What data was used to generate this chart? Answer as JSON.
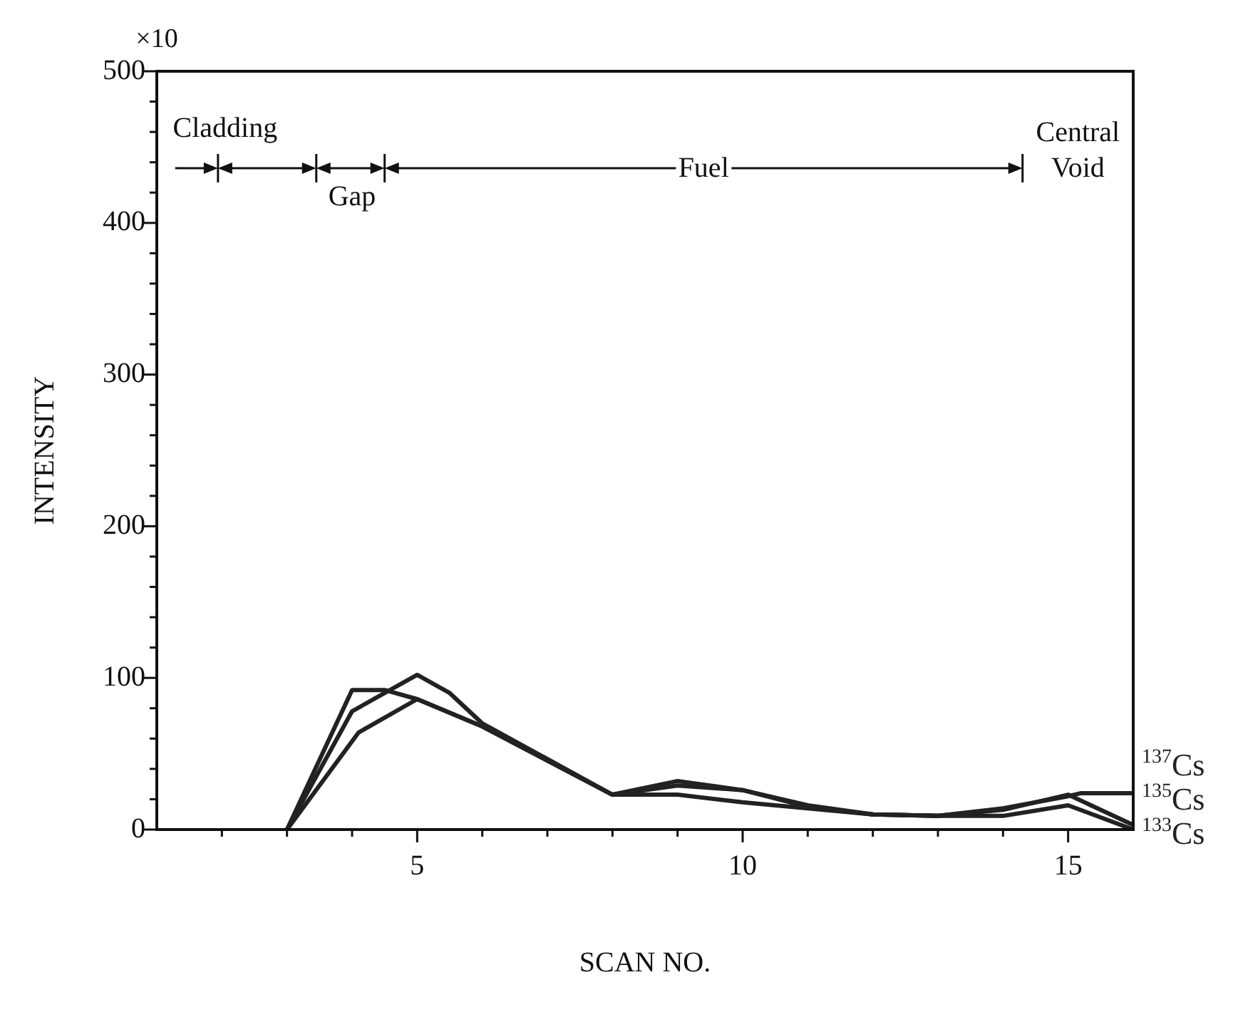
{
  "chart_data": {
    "type": "line",
    "xlabel": "SCAN NO.",
    "ylabel": "INTENSITY",
    "annotations": [
      "×10",
      "Cladding",
      "Gap",
      "Fuel",
      "Central",
      "Void"
    ],
    "xlim": [
      1,
      16
    ],
    "xticks": [
      {
        "value": 2,
        "label": null
      },
      {
        "value": 3,
        "label": null
      },
      {
        "value": 4,
        "label": null
      },
      5,
      {
        "value": 6,
        "label": null
      },
      {
        "value": 7,
        "label": null
      },
      {
        "value": 8,
        "label": null
      },
      {
        "value": 9,
        "label": null
      },
      10,
      {
        "value": 11,
        "label": null
      },
      {
        "value": 12,
        "label": null
      },
      {
        "value": 13,
        "label": null
      },
      {
        "value": 14,
        "label": null
      },
      15
    ],
    "ylim": [
      0,
      500
    ],
    "yticks": [
      0,
      {
        "value": 20,
        "label": null
      },
      {
        "value": 40,
        "label": null
      },
      {
        "value": 60,
        "label": null
      },
      {
        "value": 80,
        "label": null
      },
      100,
      {
        "value": 120,
        "label": null
      },
      {
        "value": 140,
        "label": null
      },
      {
        "value": 160,
        "label": null
      },
      {
        "value": 180,
        "label": null
      },
      200,
      {
        "value": 220,
        "label": null
      },
      {
        "value": 240,
        "label": null
      },
      {
        "value": 260,
        "label": null
      },
      {
        "value": 280,
        "label": null
      },
      300,
      {
        "value": 320,
        "label": null
      },
      {
        "value": 340,
        "label": null
      },
      {
        "value": 360,
        "label": null
      },
      {
        "value": 380,
        "label": null
      },
      400,
      {
        "value": 420,
        "label": null
      },
      {
        "value": 440,
        "label": null
      },
      {
        "value": 460,
        "label": null
      },
      {
        "value": 480,
        "label": null
      },
      500
    ],
    "grid": false,
    "legend": false,
    "marker": "none",
    "line_style": "solid",
    "series": [
      {
        "name": "$^{137}$Cs",
        "color": "#222222",
        "x": [
          3,
          4,
          5,
          5.5,
          6,
          8,
          9,
          10,
          11,
          12,
          13,
          14,
          15,
          15.2,
          16
        ],
        "values": [
          0,
          78,
          102,
          90,
          70,
          23,
          32,
          26,
          16,
          10,
          9,
          14,
          22,
          24,
          24
        ]
      },
      {
        "name": "$^{135}$Cs",
        "color": "#222222",
        "x": [
          3,
          4,
          4.5,
          5,
          6,
          8,
          9,
          10,
          11,
          12,
          13,
          14,
          15,
          16
        ],
        "values": [
          0,
          92,
          92,
          86,
          68,
          23,
          29,
          26,
          15,
          10,
          9,
          13,
          23,
          3
        ]
      },
      {
        "name": "$^{133}$Cs",
        "color": "#222222",
        "x": [
          3,
          4.1,
          5,
          6,
          8,
          9,
          10,
          11,
          12,
          13,
          14,
          15,
          16
        ],
        "values": [
          0,
          64,
          86,
          68,
          23,
          23,
          18,
          14,
          10,
          9,
          9,
          16,
          0
        ]
      }
    ]
  }
}
